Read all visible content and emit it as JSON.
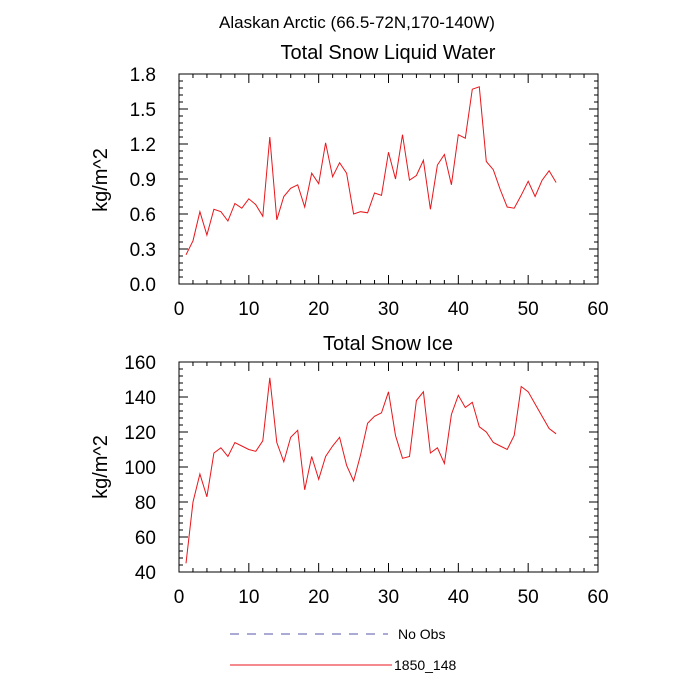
{
  "figure_title": "Alaskan Arctic (66.5-72N,170-140W)",
  "legend": {
    "items": [
      {
        "label": "No Obs",
        "style": "dashed",
        "color": "#5555aa"
      },
      {
        "label": "1850_148",
        "style": "solid",
        "color": "#e8161b"
      }
    ]
  },
  "chart_data": [
    {
      "type": "line",
      "title": "Total Snow Liquid Water",
      "xlabel": "",
      "ylabel": "kg/m^2",
      "xlim": [
        0,
        60
      ],
      "ylim": [
        0,
        1.8
      ],
      "xticks": [
        0,
        10,
        20,
        30,
        40,
        50,
        60
      ],
      "yticks": [
        0.0,
        0.3,
        0.6,
        0.9,
        1.2,
        1.5,
        1.8
      ],
      "ytick_labels": [
        "0.0",
        "0.3",
        "0.6",
        "0.9",
        "1.2",
        "1.5",
        "1.8"
      ],
      "grid": false,
      "series": [
        {
          "name": "1850_148",
          "color": "#e8161b",
          "x": [
            1,
            2,
            3,
            4,
            5,
            6,
            7,
            8,
            9,
            10,
            11,
            12,
            13,
            14,
            15,
            16,
            17,
            18,
            19,
            20,
            21,
            22,
            23,
            24,
            25,
            26,
            27,
            28,
            29,
            30,
            31,
            32,
            33,
            34,
            35,
            36,
            37,
            38,
            39,
            40,
            41,
            42,
            43,
            44,
            45,
            46,
            47,
            48,
            49,
            50,
            51,
            52,
            53,
            54
          ],
          "values": [
            0.25,
            0.37,
            0.62,
            0.42,
            0.64,
            0.62,
            0.54,
            0.69,
            0.65,
            0.73,
            0.68,
            0.58,
            1.26,
            0.55,
            0.75,
            0.82,
            0.85,
            0.66,
            0.95,
            0.86,
            1.21,
            0.92,
            1.04,
            0.95,
            0.6,
            0.62,
            0.61,
            0.78,
            0.76,
            1.13,
            0.9,
            1.28,
            0.89,
            0.93,
            1.06,
            0.64,
            1.02,
            1.11,
            0.85,
            1.28,
            1.25,
            1.67,
            1.69,
            1.05,
            0.98,
            0.81,
            0.66,
            0.65,
            0.76,
            0.88,
            0.75,
            0.89,
            0.97,
            0.87
          ]
        }
      ]
    },
    {
      "type": "line",
      "title": "Total Snow Ice",
      "xlabel": "",
      "ylabel": "kg/m^2",
      "xlim": [
        0,
        60
      ],
      "ylim": [
        40,
        160
      ],
      "xticks": [
        0,
        10,
        20,
        30,
        40,
        50,
        60
      ],
      "yticks": [
        40,
        60,
        80,
        100,
        120,
        140,
        160
      ],
      "ytick_labels": [
        "40",
        "60",
        "80",
        "100",
        "120",
        "140",
        "160"
      ],
      "grid": false,
      "series": [
        {
          "name": "1850_148",
          "color": "#e8161b",
          "x": [
            1,
            2,
            3,
            4,
            5,
            6,
            7,
            8,
            9,
            10,
            11,
            12,
            13,
            14,
            15,
            16,
            17,
            18,
            19,
            20,
            21,
            22,
            23,
            24,
            25,
            26,
            27,
            28,
            29,
            30,
            31,
            32,
            33,
            34,
            35,
            36,
            37,
            38,
            39,
            40,
            41,
            42,
            43,
            44,
            45,
            46,
            47,
            48,
            49,
            50,
            51,
            52,
            53,
            54
          ],
          "values": [
            45,
            80,
            96,
            83,
            108,
            111,
            106,
            114,
            112,
            110,
            109,
            115,
            151,
            114,
            103,
            117,
            121,
            87,
            106,
            93,
            106,
            112,
            117,
            101,
            92,
            107,
            125,
            129,
            131,
            143,
            118,
            105,
            106,
            138,
            143,
            108,
            111,
            102,
            130,
            141,
            134,
            137,
            123,
            120,
            114,
            112,
            110,
            118,
            146,
            143,
            136,
            129,
            122,
            119
          ]
        }
      ]
    }
  ]
}
